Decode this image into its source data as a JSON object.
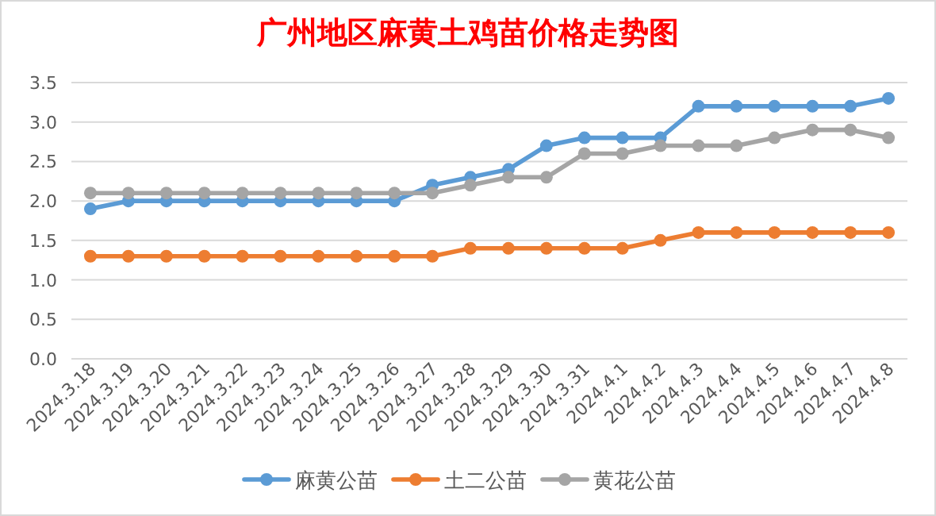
{
  "chart_data": {
    "type": "line",
    "title": "广州地区麻黄土鸡苗价格走势图",
    "categories": [
      "2024.3.18",
      "2024.3.19",
      "2024.3.20",
      "2024.3.21",
      "2024.3.22",
      "2024.3.23",
      "2024.3.24",
      "2024.3.25",
      "2024.3.26",
      "2024.3.27",
      "2024.3.28",
      "2024.3.29",
      "2024.3.30",
      "2024.3.31",
      "2024.4.1",
      "2024.4.2",
      "2024.4.3",
      "2024.4.4",
      "2024.4.5",
      "2024.4.6",
      "2024.4.7",
      "2024.4.8"
    ],
    "series": [
      {
        "name": "麻黄公苗",
        "color": "#5b9bd5",
        "values": [
          1.9,
          2.0,
          2.0,
          2.0,
          2.0,
          2.0,
          2.0,
          2.0,
          2.0,
          2.2,
          2.3,
          2.4,
          2.7,
          2.8,
          2.8,
          2.8,
          3.2,
          3.2,
          3.2,
          3.2,
          3.2,
          3.3
        ]
      },
      {
        "name": "土二公苗",
        "color": "#ed7d31",
        "values": [
          1.3,
          1.3,
          1.3,
          1.3,
          1.3,
          1.3,
          1.3,
          1.3,
          1.3,
          1.3,
          1.4,
          1.4,
          1.4,
          1.4,
          1.4,
          1.5,
          1.6,
          1.6,
          1.6,
          1.6,
          1.6,
          1.6
        ]
      },
      {
        "name": "黄花公苗",
        "color": "#a5a5a5",
        "values": [
          2.1,
          2.1,
          2.1,
          2.1,
          2.1,
          2.1,
          2.1,
          2.1,
          2.1,
          2.1,
          2.2,
          2.3,
          2.3,
          2.6,
          2.6,
          2.7,
          2.7,
          2.7,
          2.8,
          2.9,
          2.9,
          2.8
        ]
      }
    ],
    "ylim": [
      0,
      3.5
    ],
    "yticks": [
      {
        "value": 0,
        "label": "0.0"
      },
      {
        "value": 0.5,
        "label": "0.5"
      },
      {
        "value": 1,
        "label": "1.0"
      },
      {
        "value": 1.5,
        "label": "1.5"
      },
      {
        "value": 2,
        "label": "2.0"
      },
      {
        "value": 2.5,
        "label": "2.5"
      },
      {
        "value": 3,
        "label": "3.0"
      },
      {
        "value": 3.5,
        "label": "3.5"
      }
    ],
    "grid": "y",
    "legend": "bottom",
    "marker": "circle",
    "line_style": "solid"
  }
}
